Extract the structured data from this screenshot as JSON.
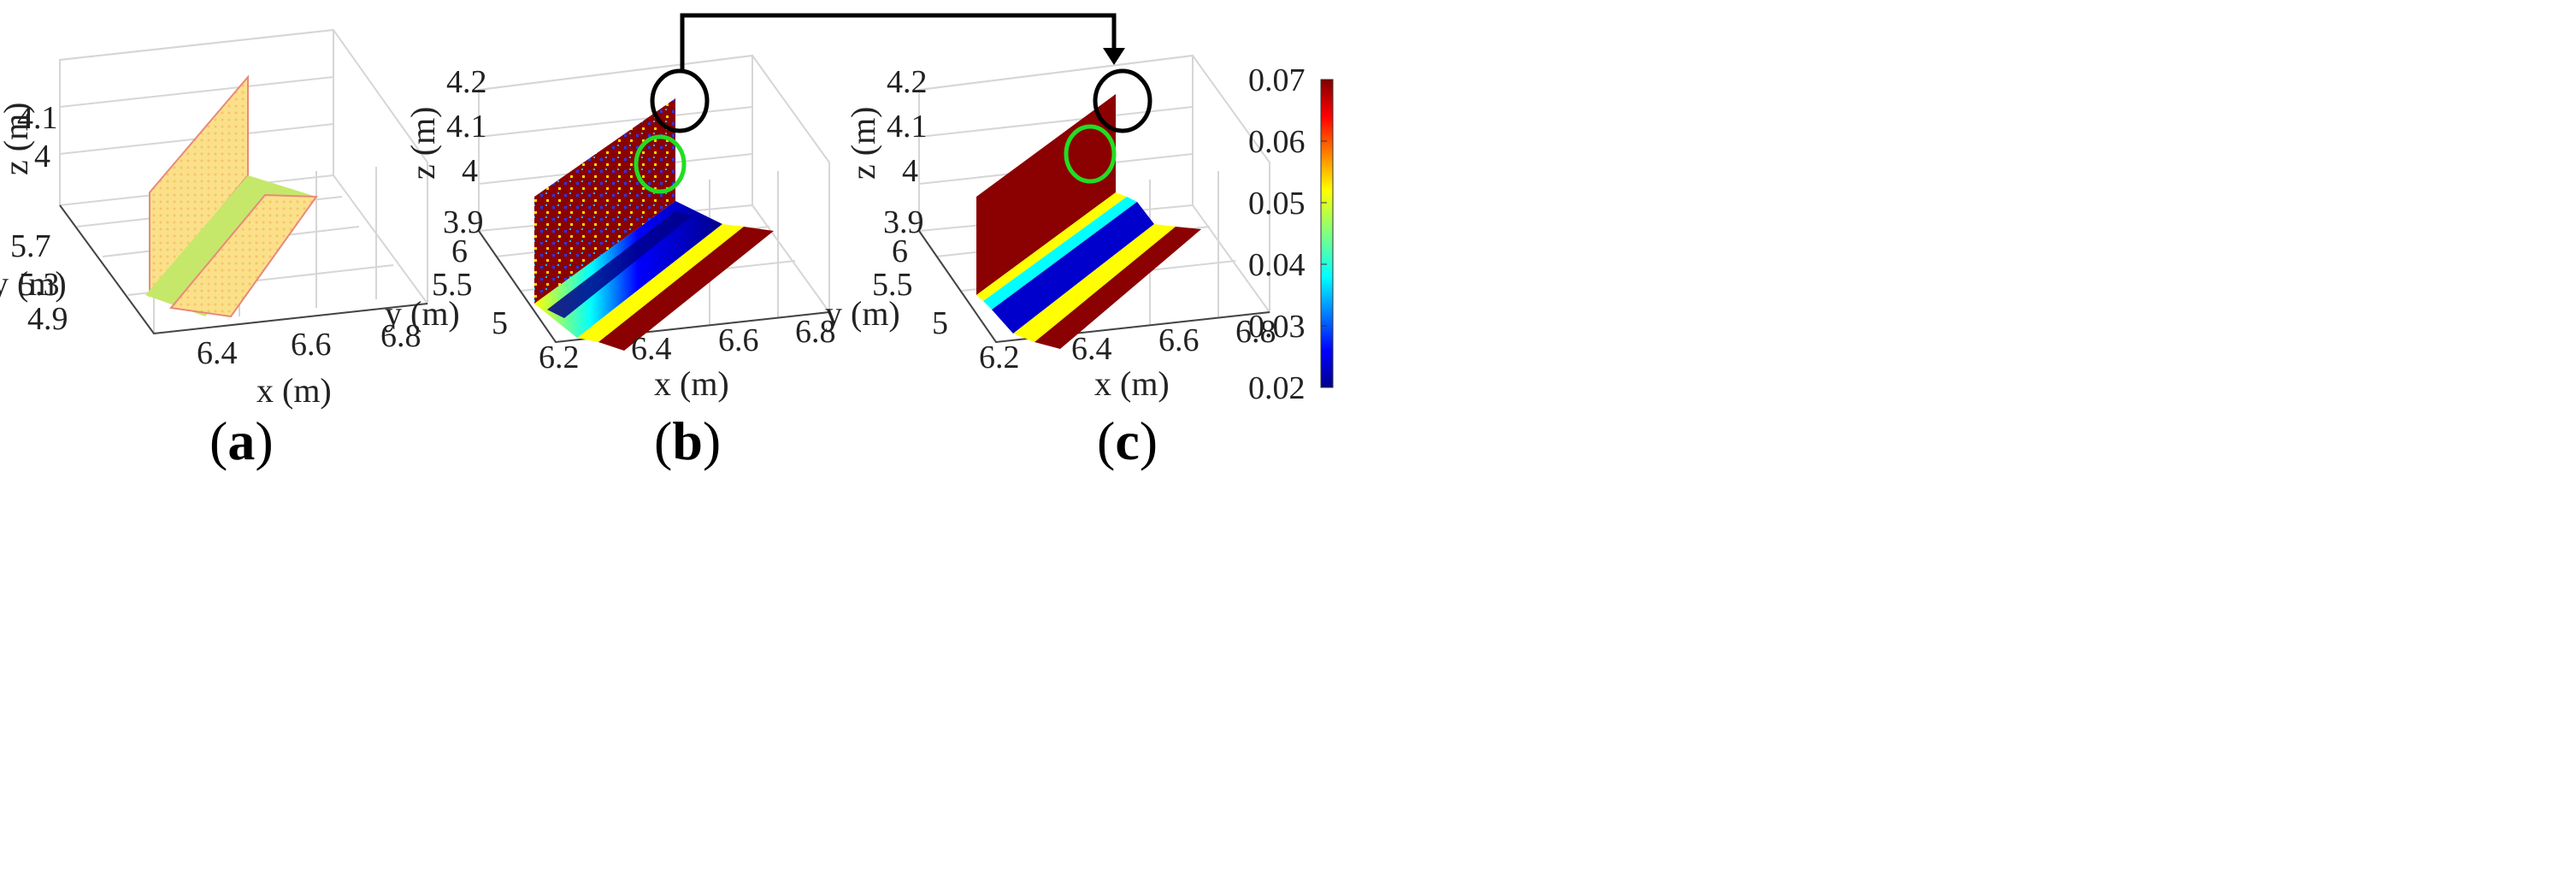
{
  "chart_data": [
    {
      "panel_label": "(a)",
      "panel_letter": "a",
      "type": "scatter3d",
      "coloring": "uniform-light",
      "xlabel": "x (m)",
      "ylabel": "y (m)",
      "zlabel": "z (m)",
      "xticks": [
        "6.4",
        "6.6",
        "6.8"
      ],
      "yticks": [
        "4.9",
        "5.3",
        "5.7"
      ],
      "zticks": [
        "4",
        "4.1"
      ],
      "grid": true
    },
    {
      "panel_label": "(b)",
      "panel_letter": "b",
      "type": "scatter3d",
      "coloring": "jet",
      "xlabel": "x (m)",
      "ylabel": "y (m)",
      "zlabel": "z (m)",
      "xticks": [
        "6.2",
        "6.4",
        "6.6",
        "6.8"
      ],
      "yticks": [
        "5",
        "5.5",
        "6"
      ],
      "zticks": [
        "3.9",
        "4",
        "4.1",
        "4.2"
      ],
      "grid": true,
      "annotations": [
        "black-circle-corner",
        "green-circle-noise"
      ]
    },
    {
      "panel_label": "(c)",
      "panel_letter": "c",
      "type": "scatter3d",
      "coloring": "jet",
      "xlabel": "x (m)",
      "ylabel": "y (m)",
      "zlabel": "z (m)",
      "xticks": [
        "6.2",
        "6.4",
        "6.6",
        "6.8"
      ],
      "yticks": [
        "5",
        "5.5",
        "6"
      ],
      "zticks": [
        "3.9",
        "4",
        "4.1",
        "4.2"
      ],
      "grid": true,
      "annotations": [
        "black-circle-corner",
        "green-circle-smooth"
      ]
    }
  ],
  "colorbar": {
    "colormap": "jet",
    "range": [
      0.02,
      0.07
    ],
    "ticks": [
      "0.07",
      "0.06",
      "0.05",
      "0.04",
      "0.03",
      "0.02"
    ]
  },
  "colors": {
    "dark_red": "#8b0000",
    "red": "#d7191c",
    "yellow": "#ffff00",
    "cyan": "#00ffff",
    "blue": "#0000cd",
    "dark_blue": "#00008b",
    "light_yellow": "#fbe08a",
    "light_green": "#c6e86a",
    "highlight_green": "#22dd22",
    "highlight_black": "#000000"
  },
  "arrow": {
    "from": "panel-b-corner",
    "to": "panel-c-corner"
  }
}
